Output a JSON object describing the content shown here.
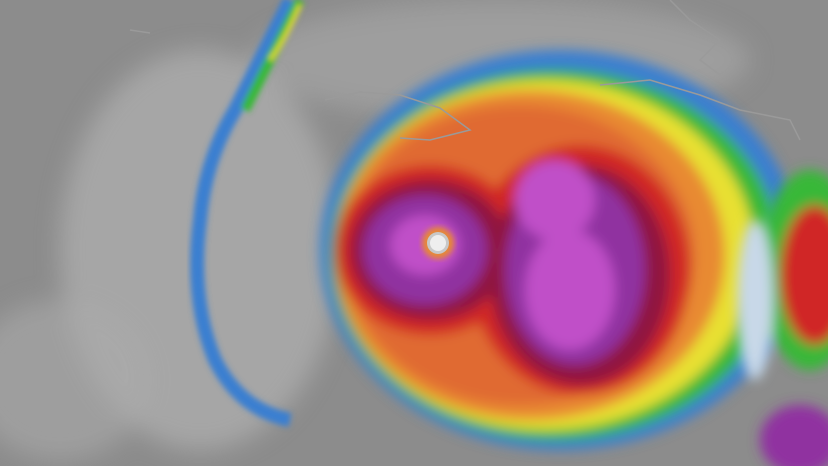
{
  "image": {
    "subject": "hurricane",
    "palette": {
      "background_gray": "#8c8c8c",
      "light_gray": "#c8c8c8",
      "blue": "#3a7fd0",
      "green": "#38b838",
      "yellow": "#e8e030",
      "orange": "#e88a30",
      "red": "#d02828",
      "dark_red": "#901840",
      "purple": "#9030a0",
      "magenta": "#c050c8",
      "eye": "#e0e0e0",
      "coastline": "#9a9a9a"
    }
  }
}
